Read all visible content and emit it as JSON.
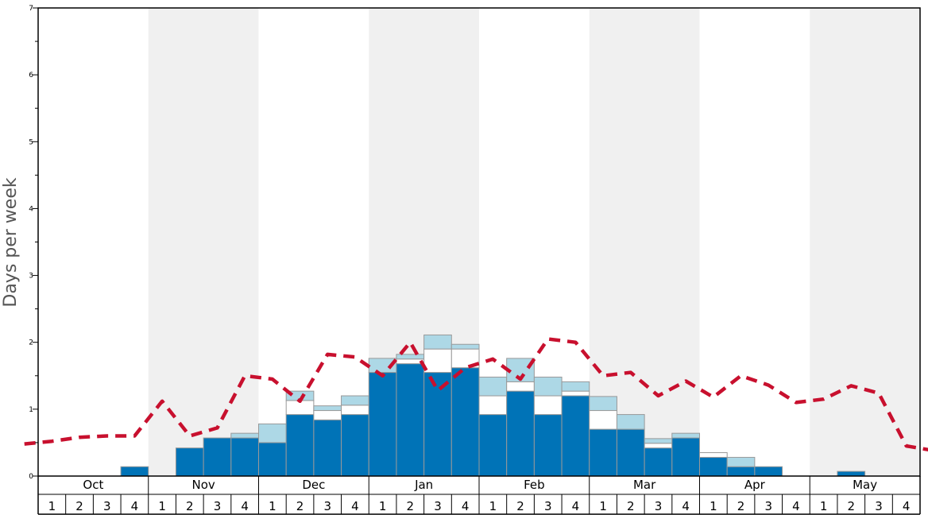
{
  "chart_data": {
    "type": "bar",
    "title": "",
    "ylabel": "Days per week",
    "xlabel": "",
    "ylim": [
      0,
      7
    ],
    "yticks": [
      "0",
      "1",
      "2",
      "3",
      "4",
      "5",
      "6",
      "7"
    ],
    "months": [
      "Oct",
      "Nov",
      "Dec",
      "Jan",
      "Feb",
      "Mar",
      "Apr",
      "May"
    ],
    "week_labels": [
      "1",
      "2",
      "3",
      "4"
    ],
    "colors": {
      "dark_bar": "#0073b7",
      "white_bar": "#ffffff",
      "light_bar": "#add8e6",
      "avg_line": "#c8102e",
      "shade": "#f0f0f0"
    },
    "series": [
      {
        "values": [
          0,
          0,
          0,
          0.14,
          0,
          0.42,
          0.57,
          0.57,
          0.5,
          0.92,
          0.84,
          0.92,
          1.55,
          1.68,
          1.55,
          1.62,
          0.92,
          1.27,
          0.92,
          1.2,
          0.7,
          0.7,
          0.42,
          0.57,
          0.28,
          0.14,
          0.14,
          0,
          0,
          0.07,
          0,
          0
        ]
      },
      {
        "values": [
          0,
          0,
          0,
          0,
          0,
          0,
          0,
          0,
          0,
          0.21,
          0.14,
          0.14,
          0,
          0.07,
          0.35,
          0.28,
          0.28,
          0.14,
          0.28,
          0.07,
          0.28,
          0,
          0.07,
          0,
          0.07,
          0,
          0,
          0,
          0,
          0,
          0,
          0
        ]
      },
      {
        "values": [
          0,
          0,
          0,
          0,
          0,
          0,
          0,
          0.07,
          0.28,
          0.14,
          0.07,
          0.14,
          0.21,
          0.07,
          0.21,
          0.07,
          0.28,
          0.35,
          0.28,
          0.14,
          0.21,
          0.22,
          0.07,
          0.07,
          0,
          0.14,
          0,
          0,
          0,
          0,
          0,
          0
        ]
      },
      {
        "values": [
          0.48,
          0.52,
          0.58,
          0.6,
          0.6,
          1.12,
          0.6,
          0.72,
          1.5,
          1.45,
          1.12,
          1.82,
          1.78,
          1.5,
          2.0,
          1.28,
          1.62,
          1.75,
          1.45,
          2.05,
          2.0,
          1.5,
          1.55,
          1.2,
          1.42,
          1.18,
          1.5,
          1.36,
          1.1,
          1.15,
          1.35,
          1.24,
          0.45,
          0.38
        ]
      }
    ]
  }
}
